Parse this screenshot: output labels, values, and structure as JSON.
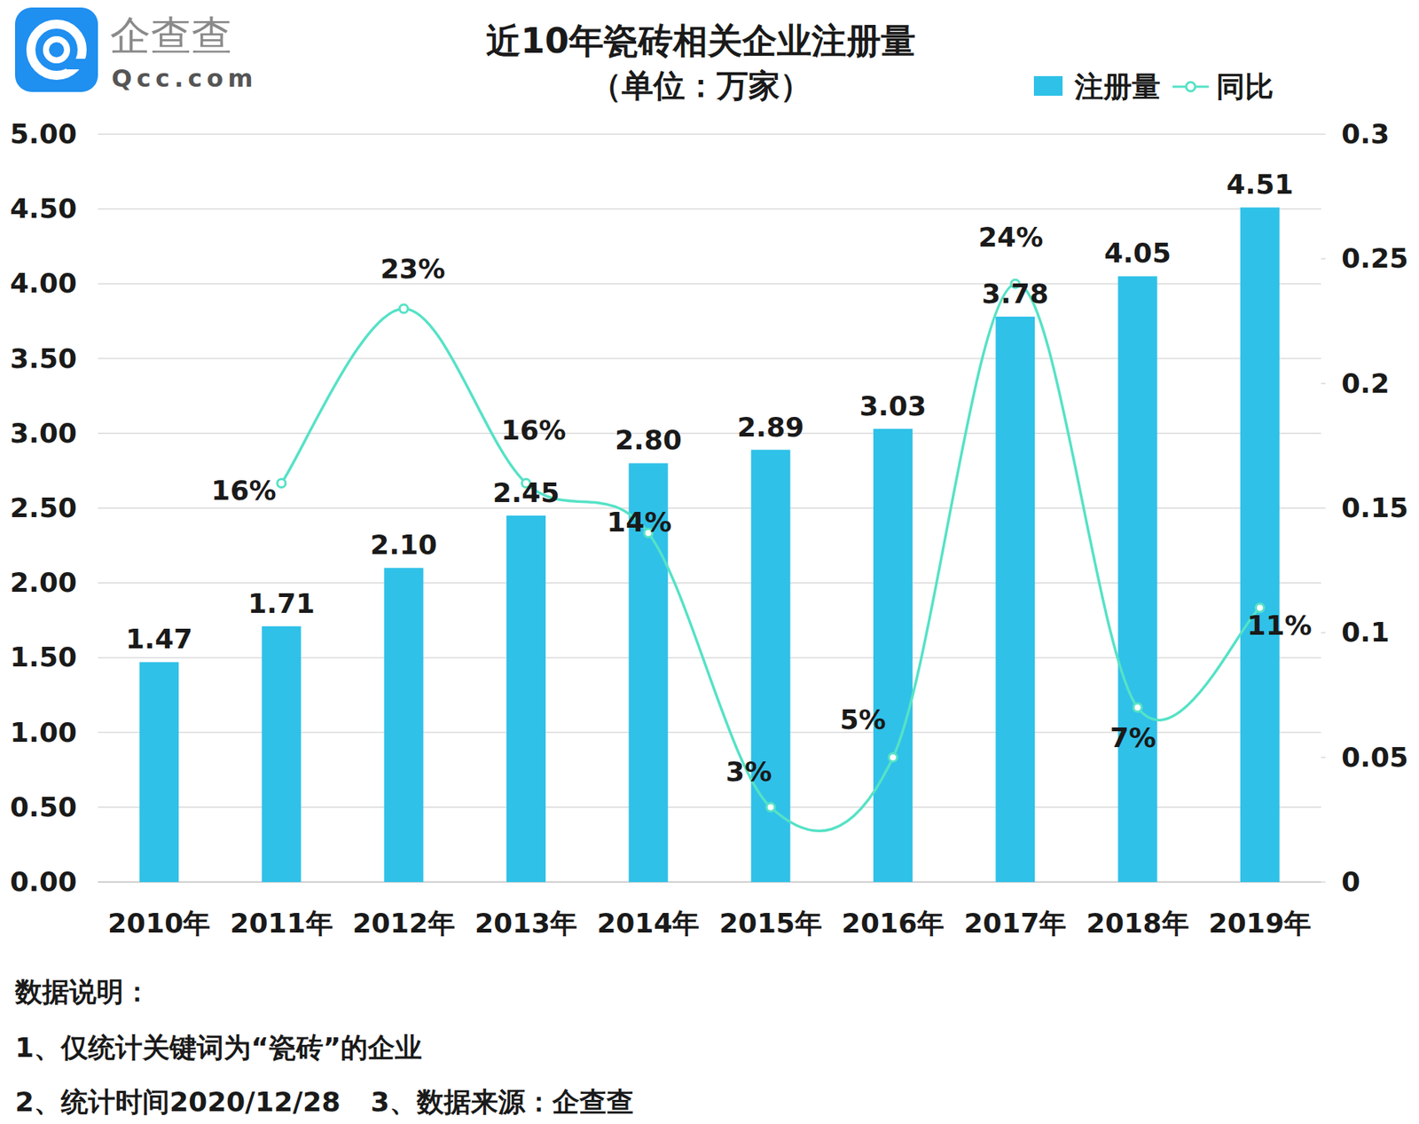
{
  "chart_data": {
    "type": "bar",
    "title": "近10年瓷砖相关企业注册量",
    "subtitle": "（单位：万家）",
    "categories": [
      "2010年",
      "2011年",
      "2012年",
      "2013年",
      "2014年",
      "2015年",
      "2016年",
      "2017年",
      "2018年",
      "2019年"
    ],
    "series": [
      {
        "name": "注册量",
        "type": "bar",
        "color": "#2fc1e8",
        "values": [
          1.47,
          1.71,
          2.1,
          2.45,
          2.8,
          2.89,
          3.03,
          3.78,
          4.05,
          4.51
        ],
        "value_labels": [
          "1.47",
          "1.71",
          "2.10",
          "2.45",
          "2.80",
          "2.89",
          "3.03",
          "3.78",
          "4.05",
          "4.51"
        ]
      },
      {
        "name": "同比",
        "type": "line",
        "axis": "y2",
        "color": "#55e2c6",
        "marker": "circle",
        "line_style": "solid",
        "values": [
          null,
          0.16,
          0.23,
          0.16,
          0.14,
          0.03,
          0.05,
          0.24,
          0.07,
          0.11
        ],
        "value_labels": [
          null,
          "16%",
          "23%",
          "16%",
          "14%",
          "3%",
          "5%",
          "24%",
          "7%",
          "11%"
        ]
      }
    ],
    "ylim": [
      0,
      5
    ],
    "yticks": [
      {
        "value": 0,
        "label": "0.00"
      },
      {
        "value": 0.5,
        "label": "0.50"
      },
      {
        "value": 1,
        "label": "1.00"
      },
      {
        "value": 1.5,
        "label": "1.50"
      },
      {
        "value": 2,
        "label": "2.00"
      },
      {
        "value": 2.5,
        "label": "2.50"
      },
      {
        "value": 3,
        "label": "3.00"
      },
      {
        "value": 3.5,
        "label": "3.50"
      },
      {
        "value": 4,
        "label": "4.00"
      },
      {
        "value": 4.5,
        "label": "4.50"
      },
      {
        "value": 5,
        "label": "5.00"
      }
    ],
    "y2lim": [
      0,
      0.3
    ],
    "y2ticks": [
      0,
      0.05,
      0.1,
      0.15,
      0.2,
      0.25,
      0.3
    ],
    "grid": true,
    "legend": "top-right",
    "data_labels": true
  },
  "logo": {
    "name": "企查查",
    "url": "Qcc.com"
  },
  "notes": {
    "title": "数据说明：",
    "items": [
      "1、仅统计关键词为“瓷砖”的企业",
      "2、统计时间2020/12/28",
      "3、数据来源：企查查"
    ]
  }
}
